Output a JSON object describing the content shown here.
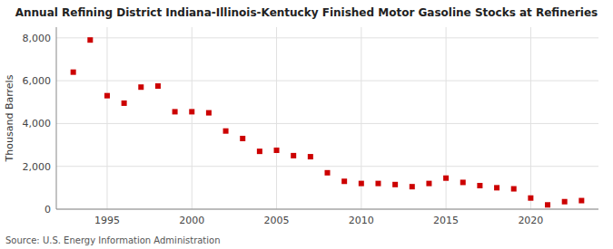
{
  "chart_data": {
    "type": "scatter",
    "title": "Annual Refining District Indiana-Illinois-Kentucky Finished Motor Gasoline Stocks at Refineries",
    "y_label": "Thousand Barrels",
    "annotations": [
      "Source: U.S. Energy Information Administration"
    ],
    "x": [
      1993,
      1994,
      1995,
      1996,
      1997,
      1998,
      1999,
      2000,
      2001,
      2002,
      2003,
      2004,
      2005,
      2006,
      2007,
      2008,
      2009,
      2010,
      2011,
      2012,
      2013,
      2014,
      2015,
      2016,
      2017,
      2018,
      2019,
      2020,
      2021,
      2022,
      2023
    ],
    "values": [
      6400,
      7900,
      5300,
      4950,
      5700,
      5750,
      4550,
      4550,
      4500,
      3650,
      3300,
      2700,
      2750,
      2500,
      2450,
      1700,
      1300,
      1200,
      1200,
      1150,
      1050,
      1200,
      1450,
      1250,
      1100,
      1000,
      950,
      520,
      200,
      350,
      400
    ],
    "color": "#cc0000",
    "marker": "square",
    "xlim": [
      1992,
      2024
    ],
    "ylim": [
      0,
      8500
    ],
    "xticks": [
      1995,
      2000,
      2005,
      2010,
      2015,
      2020
    ],
    "yticks": [
      0,
      {
        "value": 2000,
        "label": "2,000"
      },
      {
        "value": 4000,
        "label": "4,000"
      },
      {
        "value": 6000,
        "label": "6,000"
      },
      {
        "value": 8000,
        "label": "8,000"
      }
    ],
    "grid": true
  }
}
